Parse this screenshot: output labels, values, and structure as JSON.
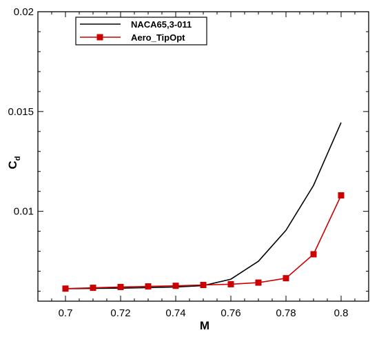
{
  "chart_data": {
    "type": "line",
    "title": "",
    "xlabel": "M",
    "ylabel_main": "C",
    "ylabel_sub": "d",
    "xlim": [
      0.69,
      0.81
    ],
    "ylim": [
      0.0055,
      0.02
    ],
    "x_ticks": [
      0.7,
      0.72,
      0.74,
      0.76,
      0.78,
      0.8
    ],
    "x_tick_labels": [
      "0.7",
      "0.72",
      "0.74",
      "0.76",
      "0.78",
      "0.8"
    ],
    "y_ticks": [
      0.01,
      0.015,
      0.02
    ],
    "y_tick_labels": [
      "0.01",
      "0.015",
      "0.02"
    ],
    "grid": false,
    "legend_position": "top-left",
    "series": [
      {
        "name": "NACA65,3-011",
        "color": "#000000",
        "marker": "none",
        "x": [
          0.7,
          0.71,
          0.72,
          0.73,
          0.74,
          0.75,
          0.76,
          0.77,
          0.78,
          0.79,
          0.8
        ],
        "y": [
          0.00612,
          0.00614,
          0.00615,
          0.00618,
          0.00621,
          0.00628,
          0.0066,
          0.0075,
          0.00905,
          0.0113,
          0.01445
        ]
      },
      {
        "name": "Aero_TipOpt",
        "color": "#cc0000",
        "marker": "square",
        "x": [
          0.7,
          0.71,
          0.72,
          0.73,
          0.74,
          0.75,
          0.76,
          0.77,
          0.78,
          0.79,
          0.8
        ],
        "y": [
          0.00613,
          0.00617,
          0.00621,
          0.00624,
          0.00627,
          0.00631,
          0.00635,
          0.00643,
          0.00665,
          0.00785,
          0.0108
        ]
      }
    ]
  }
}
